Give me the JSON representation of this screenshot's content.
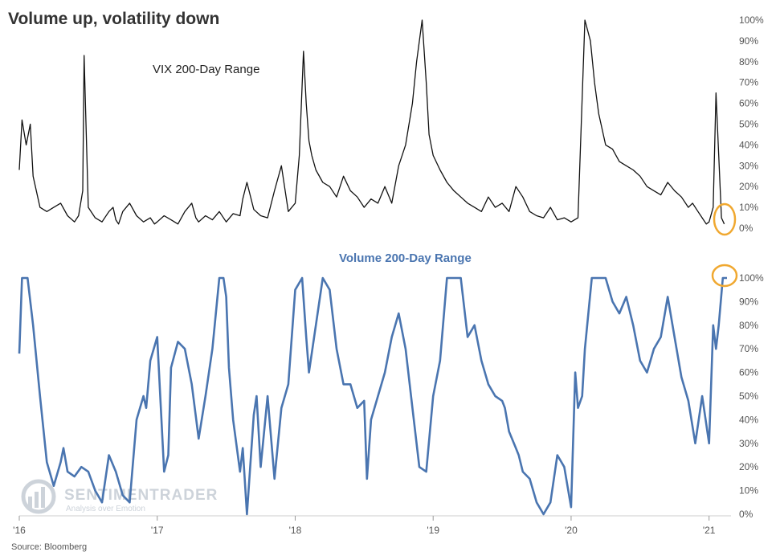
{
  "title": "Volume up, volatility down",
  "source": "Source: Bloomberg",
  "watermark": {
    "brand": "SENTIMENTRADER",
    "tagline": "Analysis over Emotion"
  },
  "colors": {
    "vix_line": "#111111",
    "volume_line": "#4a75b0",
    "highlight": "#f0a830",
    "axis": "#cccccc",
    "text": "#333333"
  },
  "x_axis": {
    "ticks": [
      "'16",
      "'17",
      "'18",
      "'19",
      "'20",
      "'21"
    ],
    "tick_years": [
      2016,
      2017,
      2018,
      2019,
      2020,
      2021
    ],
    "range": [
      2016.0,
      2021.13
    ]
  },
  "chart_data": [
    {
      "type": "line",
      "title": "VIX 200-Day Range",
      "yrange": [
        0,
        100
      ],
      "yticks": [
        "100%",
        "90%",
        "80%",
        "70%",
        "60%",
        "50%",
        "40%",
        "30%",
        "20%",
        "10%",
        "0%"
      ],
      "ytick_values": [
        100,
        90,
        80,
        70,
        60,
        50,
        40,
        30,
        20,
        10,
        0
      ],
      "series": [
        {
          "x": [
            2016.0,
            2016.02,
            2016.05,
            2016.08,
            2016.1,
            2016.15,
            2016.2,
            2016.25,
            2016.3,
            2016.35,
            2016.4,
            2016.43,
            2016.46,
            2016.47,
            2016.5,
            2016.55,
            2016.6,
            2016.65,
            2016.68,
            2016.7,
            2016.72,
            2016.75,
            2016.8,
            2016.85,
            2016.9,
            2016.95,
            2016.98,
            2017.0,
            2017.05,
            2017.1,
            2017.15,
            2017.2,
            2017.25,
            2017.28,
            2017.3,
            2017.35,
            2017.4,
            2017.45,
            2017.5,
            2017.55,
            2017.6,
            2017.62,
            2017.65,
            2017.7,
            2017.75,
            2017.8,
            2017.85,
            2017.9,
            2017.95,
            2018.0,
            2018.03,
            2018.06,
            2018.08,
            2018.1,
            2018.12,
            2018.15,
            2018.2,
            2018.25,
            2018.3,
            2018.35,
            2018.4,
            2018.45,
            2018.5,
            2018.55,
            2018.6,
            2018.65,
            2018.7,
            2018.75,
            2018.8,
            2018.85,
            2018.88,
            2018.92,
            2018.95,
            2018.97,
            2019.0,
            2019.05,
            2019.1,
            2019.15,
            2019.2,
            2019.25,
            2019.3,
            2019.35,
            2019.4,
            2019.45,
            2019.5,
            2019.55,
            2019.6,
            2019.65,
            2019.7,
            2019.75,
            2019.8,
            2019.85,
            2019.9,
            2019.95,
            2020.0,
            2020.05,
            2020.1,
            2020.14,
            2020.17,
            2020.2,
            2020.25,
            2020.3,
            2020.35,
            2020.4,
            2020.45,
            2020.5,
            2020.55,
            2020.6,
            2020.65,
            2020.7,
            2020.75,
            2020.8,
            2020.85,
            2020.88,
            2020.92,
            2020.95,
            2020.98,
            2021.0,
            2021.03,
            2021.05,
            2021.07,
            2021.09,
            2021.11
          ],
          "y": [
            28,
            52,
            40,
            50,
            25,
            10,
            8,
            10,
            12,
            6,
            3,
            6,
            18,
            83,
            10,
            5,
            3,
            8,
            10,
            4,
            2,
            8,
            12,
            6,
            3,
            5,
            2,
            3,
            6,
            4,
            2,
            8,
            12,
            5,
            3,
            6,
            4,
            8,
            3,
            7,
            6,
            14,
            22,
            9,
            6,
            5,
            18,
            30,
            8,
            12,
            35,
            85,
            60,
            42,
            35,
            28,
            22,
            20,
            15,
            25,
            18,
            15,
            10,
            14,
            12,
            20,
            12,
            30,
            40,
            60,
            80,
            100,
            70,
            45,
            35,
            28,
            22,
            18,
            15,
            12,
            10,
            8,
            15,
            10,
            12,
            8,
            20,
            15,
            8,
            6,
            5,
            10,
            4,
            5,
            3,
            5,
            100,
            90,
            70,
            55,
            40,
            38,
            32,
            30,
            28,
            25,
            20,
            18,
            16,
            22,
            18,
            15,
            10,
            12,
            8,
            5,
            2,
            3,
            10,
            65,
            35,
            5,
            2
          ]
        }
      ]
    },
    {
      "type": "line",
      "title": "Volume 200-Day Range",
      "yrange": [
        0,
        100
      ],
      "yticks": [
        "100%",
        "90%",
        "80%",
        "70%",
        "60%",
        "50%",
        "40%",
        "30%",
        "20%",
        "10%",
        "0%"
      ],
      "ytick_values": [
        100,
        90,
        80,
        70,
        60,
        50,
        40,
        30,
        20,
        10,
        0
      ],
      "series": [
        {
          "x": [
            2016.0,
            2016.02,
            2016.03,
            2016.06,
            2016.1,
            2016.15,
            2016.2,
            2016.25,
            2016.3,
            2016.32,
            2016.35,
            2016.4,
            2016.45,
            2016.5,
            2016.55,
            2016.6,
            2016.65,
            2016.7,
            2016.75,
            2016.8,
            2016.85,
            2016.9,
            2016.92,
            2016.95,
            2017.0,
            2017.05,
            2017.08,
            2017.1,
            2017.15,
            2017.2,
            2017.25,
            2017.3,
            2017.35,
            2017.4,
            2017.45,
            2017.48,
            2017.5,
            2017.52,
            2017.55,
            2017.6,
            2017.62,
            2017.65,
            2017.7,
            2017.72,
            2017.75,
            2017.8,
            2017.85,
            2017.9,
            2017.95,
            2018.0,
            2018.05,
            2018.08,
            2018.1,
            2018.15,
            2018.2,
            2018.25,
            2018.3,
            2018.35,
            2018.4,
            2018.45,
            2018.5,
            2018.52,
            2018.55,
            2018.6,
            2018.65,
            2018.7,
            2018.75,
            2018.8,
            2018.85,
            2018.9,
            2018.95,
            2019.0,
            2019.05,
            2019.1,
            2019.15,
            2019.2,
            2019.25,
            2019.3,
            2019.35,
            2019.4,
            2019.45,
            2019.5,
            2019.52,
            2019.55,
            2019.6,
            2019.62,
            2019.65,
            2019.7,
            2019.75,
            2019.8,
            2019.85,
            2019.9,
            2019.95,
            2020.0,
            2020.03,
            2020.05,
            2020.08,
            2020.1,
            2020.15,
            2020.2,
            2020.25,
            2020.3,
            2020.35,
            2020.4,
            2020.45,
            2020.5,
            2020.55,
            2020.6,
            2020.65,
            2020.7,
            2020.75,
            2020.8,
            2020.85,
            2020.9,
            2020.95,
            2021.0,
            2021.03,
            2021.05,
            2021.07,
            2021.1,
            2021.13
          ],
          "y": [
            68,
            100,
            100,
            100,
            80,
            50,
            22,
            12,
            22,
            28,
            18,
            16,
            20,
            18,
            10,
            5,
            25,
            18,
            8,
            5,
            40,
            50,
            45,
            65,
            75,
            18,
            25,
            62,
            73,
            70,
            55,
            32,
            50,
            70,
            100,
            100,
            92,
            62,
            40,
            18,
            28,
            0,
            42,
            50,
            20,
            50,
            15,
            45,
            55,
            95,
            100,
            75,
            60,
            80,
            100,
            95,
            70,
            55,
            55,
            45,
            48,
            15,
            40,
            50,
            60,
            75,
            85,
            70,
            45,
            20,
            18,
            50,
            65,
            100,
            100,
            100,
            75,
            80,
            65,
            55,
            50,
            48,
            45,
            35,
            28,
            25,
            18,
            15,
            5,
            0,
            5,
            25,
            20,
            3,
            60,
            45,
            50,
            70,
            100,
            100,
            100,
            90,
            85,
            92,
            80,
            65,
            60,
            70,
            75,
            92,
            75,
            58,
            48,
            30,
            50,
            30,
            80,
            70,
            80,
            100,
            100
          ]
        }
      ]
    }
  ]
}
